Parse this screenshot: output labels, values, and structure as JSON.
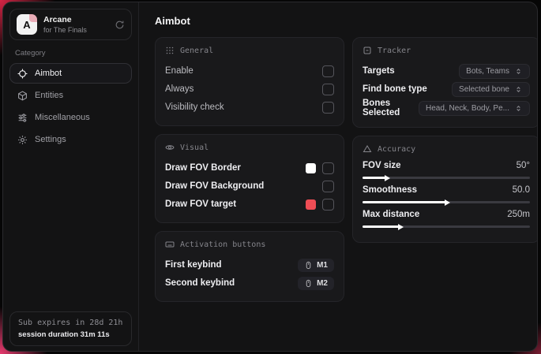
{
  "colors": {
    "accent_red": "#D92A4A",
    "swatch_white": "#FFFFFF",
    "swatch_red": "#EF4D55"
  },
  "sidebar": {
    "brand": {
      "initial": "A",
      "name": "Arcane",
      "subtitle": "for The Finals"
    },
    "category_label": "Category",
    "items": [
      {
        "label": "Aimbot",
        "icon": "crosshair-icon",
        "selected": true
      },
      {
        "label": "Entities",
        "icon": "cube-icon",
        "selected": false
      },
      {
        "label": "Miscellaneous",
        "icon": "sliders-icon",
        "selected": false
      },
      {
        "label": "Settings",
        "icon": "gear-icon",
        "selected": false
      }
    ],
    "footer": {
      "expires": "Sub expires in 28d 21h",
      "session": "session duration 31m 11s"
    }
  },
  "main": {
    "title": "Aimbot",
    "general": {
      "title": "General",
      "rows": [
        {
          "label": "Enable",
          "checked": false
        },
        {
          "label": "Always",
          "checked": false
        },
        {
          "label": "Visibility check",
          "checked": false
        }
      ]
    },
    "visual": {
      "title": "Visual",
      "rows": [
        {
          "label": "Draw FOV Border",
          "swatch": "#FFFFFF",
          "checked": false
        },
        {
          "label": "Draw FOV Background",
          "checked": false
        },
        {
          "label": "Draw FOV target",
          "swatch": "#EF4D55",
          "checked": false
        }
      ]
    },
    "activation": {
      "title": "Activation buttons",
      "rows": [
        {
          "label": "First keybind",
          "key": "M1"
        },
        {
          "label": "Second keybind",
          "key": "M2"
        }
      ]
    },
    "tracker": {
      "title": "Tracker",
      "rows": [
        {
          "label": "Targets",
          "value": "Bots, Teams"
        },
        {
          "label": "Find bone type",
          "value": "Selected bone"
        },
        {
          "label": "Bones Selected",
          "value": "Head, Neck, Body, Pe..."
        }
      ]
    },
    "accuracy": {
      "title": "Accuracy",
      "sliders": [
        {
          "label": "FOV size",
          "value": "50°",
          "percent": 14
        },
        {
          "label": "Smoothness",
          "value": "50.0",
          "percent": 50
        },
        {
          "label": "Max distance",
          "value": "250m",
          "percent": 22
        }
      ]
    }
  }
}
